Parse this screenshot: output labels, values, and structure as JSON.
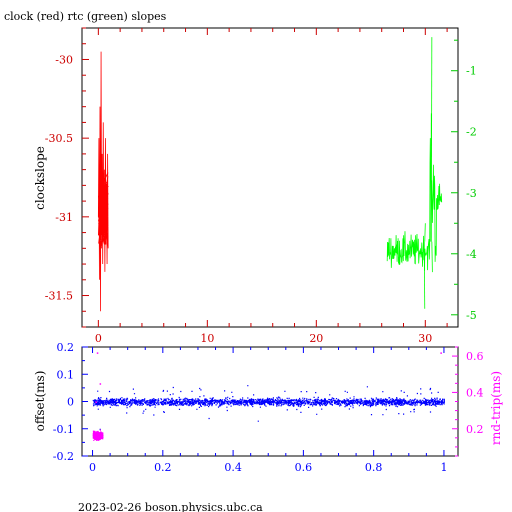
{
  "title": "clock (red) rtc (green) slopes",
  "footer": "2023-02-26  boson.physics.ubc.ca",
  "colors": {
    "axis_left_top": "#cc0000",
    "axis_right_top": "#00cc00",
    "axis_bottom": "#0000ff",
    "axis_right_bottom": "#ff00ff",
    "clock": "#ff0000",
    "rtc": "#00ff00",
    "offset": "#0000ff",
    "rndtrip": "#ff00ff",
    "frame": "#000000"
  },
  "chart_data": [
    {
      "type": "line",
      "title": "clock (red) rtc (green) slopes",
      "ylabel": "clockslope",
      "xlim": [
        -1.5,
        33
      ],
      "ylim": [
        -31.7,
        -29.8
      ],
      "y2lim": [
        -5.2,
        -0.3
      ],
      "x_ticks": [
        "0",
        "10",
        "20",
        "30"
      ],
      "y_ticks": [
        "-30",
        "-30.5",
        "-31",
        "-31.5"
      ],
      "y2_ticks": [
        "-1",
        "-2",
        "-3",
        "-4",
        "-5"
      ],
      "series": [
        {
          "name": "clock",
          "axis": "left",
          "x_range": [
            0,
            0.9
          ],
          "y_range": [
            -31.6,
            -29.95
          ],
          "x": [
            0.0,
            0.05,
            0.1,
            0.15,
            0.2,
            0.25,
            0.3,
            0.35,
            0.4,
            0.45,
            0.5,
            0.55,
            0.6,
            0.65,
            0.7,
            0.75,
            0.8,
            0.85,
            0.9
          ],
          "values": [
            -31.0,
            -30.5,
            -31.4,
            -30.3,
            -31.6,
            -29.95,
            -31.2,
            -30.6,
            -31.3,
            -30.4,
            -31.1,
            -30.7,
            -31.35,
            -30.5,
            -31.0,
            -30.8,
            -31.3,
            -30.6,
            -31.2
          ]
        },
        {
          "name": "rtc",
          "axis": "right",
          "x_range": [
            26.5,
            31.5
          ],
          "y_range": [
            -5.0,
            -0.45
          ],
          "x": [
            26.5,
            26.8,
            27.1,
            27.4,
            27.7,
            28.0,
            28.3,
            28.6,
            28.9,
            29.2,
            29.5,
            29.8,
            30.1,
            30.4,
            30.7,
            31.0,
            31.2,
            31.5
          ],
          "values": [
            -3.6,
            -4.3,
            -3.8,
            -4.5,
            -3.5,
            -4.2,
            -3.9,
            -4.6,
            -3.7,
            -4.9,
            -4.0,
            -3.6,
            -4.4,
            -3.3,
            -1.6,
            -0.45,
            -3.2,
            -2.8
          ]
        }
      ]
    },
    {
      "type": "scatter",
      "ylabel": "offset(ms)",
      "y2label": "rnd-trip(ms)",
      "xlim": [
        -0.03,
        1.04
      ],
      "ylim": [
        -0.2,
        0.2
      ],
      "y2lim": [
        0.05,
        0.65
      ],
      "x_ticks": [
        "0",
        "0.2",
        "0.4",
        "0.6",
        "0.8",
        "1"
      ],
      "y_ticks": [
        "0.2",
        "0.1",
        "0",
        "-0.1",
        "-0.2"
      ],
      "y2_ticks": [
        "0.6",
        "0.4",
        "0.2"
      ],
      "series": [
        {
          "name": "offset",
          "axis": "left",
          "x_range": [
            0,
            1
          ],
          "center": 0.0,
          "spread": 0.03
        },
        {
          "name": "rnd-trip",
          "axis": "right",
          "x_range": [
            0,
            0.03
          ],
          "center": 0.17,
          "spread": 0.05
        }
      ]
    }
  ]
}
